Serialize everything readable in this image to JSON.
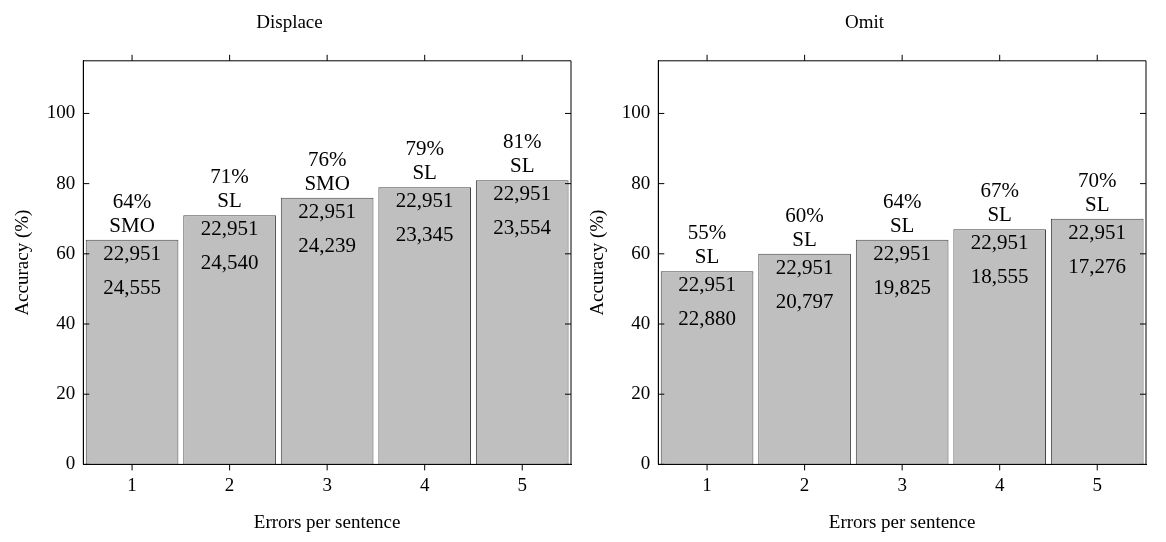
{
  "chart_data": [
    {
      "type": "bar",
      "title": "Displace",
      "xlabel": "Errors per sentence",
      "ylabel": "Accuracy (%)",
      "categories": [
        "1",
        "2",
        "3",
        "4",
        "5"
      ],
      "values": [
        64,
        71,
        76,
        79,
        81
      ],
      "color": "#bfbfbf",
      "value_labels": [
        "64%\nSMO",
        "71%\nSL",
        "76%\nSMO",
        "79%\nSL",
        "81%\nSL"
      ],
      "ylim": [
        0,
        115
      ],
      "yticks": [
        0,
        20,
        40,
        60,
        80,
        100
      ],
      "grid": false,
      "legend": false,
      "annotations": [
        {
          "text": "22,951\n24,555",
          "x": "1",
          "y": 64
        },
        {
          "text": "22,951\n24,540",
          "x": "2",
          "y": 71
        },
        {
          "text": "22,951\n24,239",
          "x": "3",
          "y": 76
        },
        {
          "text": "22,951\n23,345",
          "x": "4",
          "y": 79
        },
        {
          "text": "22,951\n23,554",
          "x": "5",
          "y": 81
        }
      ]
    },
    {
      "type": "bar",
      "title": "Omit",
      "xlabel": "Errors per sentence",
      "ylabel": "Accuracy (%)",
      "categories": [
        "1",
        "2",
        "3",
        "4",
        "5"
      ],
      "values": [
        55,
        60,
        64,
        67,
        70
      ],
      "color": "#bfbfbf",
      "value_labels": [
        "55%\nSL",
        "60%\nSL",
        "64%\nSL",
        "67%\nSL",
        "70%\nSL"
      ],
      "ylim": [
        0,
        115
      ],
      "yticks": [
        0,
        20,
        40,
        60,
        80,
        100
      ],
      "grid": false,
      "legend": false,
      "annotations": [
        {
          "text": "22,951\n22,880",
          "x": "1",
          "y": 55
        },
        {
          "text": "22,951\n20,797",
          "x": "2",
          "y": 60
        },
        {
          "text": "22,951\n19,825",
          "x": "3",
          "y": 64
        },
        {
          "text": "22,951\n18,555",
          "x": "4",
          "y": 67
        },
        {
          "text": "22,951\n17,276",
          "x": "5",
          "y": 70
        }
      ]
    }
  ]
}
